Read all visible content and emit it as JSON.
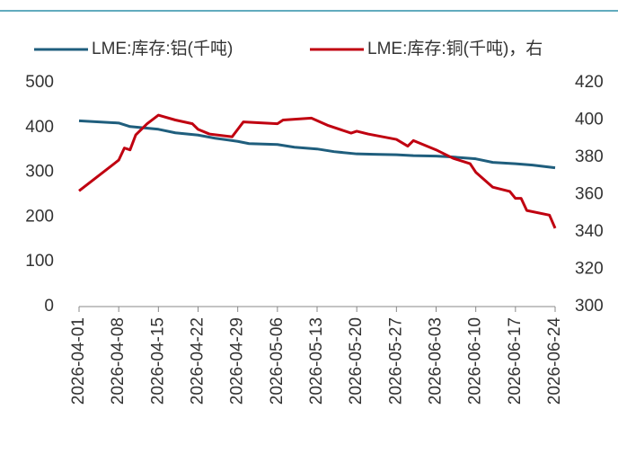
{
  "chart_data": {
    "type": "line",
    "xticks": [
      "2026-04-01",
      "2026-04-08",
      "2026-04-15",
      "2026-04-22",
      "2026-04-29",
      "2026-05-06",
      "2026-05-13",
      "2026-05-20",
      "2026-05-27",
      "2026-06-03",
      "2026-06-10",
      "2026-06-17",
      "2026-06-24"
    ],
    "xlim": [
      "2026-04-01",
      "2026-06-24"
    ],
    "ylim": [
      0,
      500
    ],
    "yticks": [
      0,
      100,
      200,
      300,
      400,
      500
    ],
    "y2lim": [
      300,
      420
    ],
    "y2ticks": [
      300,
      320,
      340,
      360,
      380,
      400,
      420
    ],
    "legend": "top",
    "series": [
      {
        "name": "LME:库存:铝(千吨)",
        "color": "#1f5e7d",
        "x": [
          "2026-04-01",
          "2026-04-08",
          "2026-04-10",
          "2026-04-15",
          "2026-04-18",
          "2026-04-22",
          "2026-04-25",
          "2026-04-29",
          "2026-05-01",
          "2026-05-06",
          "2026-05-09",
          "2026-05-13",
          "2026-05-16",
          "2026-05-20",
          "2026-05-23",
          "2026-05-27",
          "2026-05-30",
          "2026-06-03",
          "2026-06-06",
          "2026-06-10",
          "2026-06-13",
          "2026-06-17",
          "2026-06-20",
          "2026-06-24"
        ],
        "values": [
          415,
          410,
          402,
          396,
          388,
          383,
          376,
          369,
          364,
          362,
          356,
          352,
          346,
          341,
          340,
          339,
          337,
          336,
          334,
          330,
          322,
          319,
          316,
          310
        ]
      },
      {
        "name": "LME:库存:铜(千吨)，右",
        "color": "#c00010",
        "axis": "y2",
        "x": [
          "2026-04-01",
          "2026-04-08",
          "2026-04-09",
          "2026-04-10",
          "2026-04-11",
          "2026-04-13",
          "2026-04-15",
          "2026-04-18",
          "2026-04-21",
          "2026-04-22",
          "2026-04-24",
          "2026-04-28",
          "2026-04-29",
          "2026-04-30",
          "2026-05-06",
          "2026-05-07",
          "2026-05-12",
          "2026-05-15",
          "2026-05-19",
          "2026-05-20",
          "2026-05-22",
          "2026-05-27",
          "2026-05-29",
          "2026-05-30",
          "2026-06-03",
          "2026-06-06",
          "2026-06-09",
          "2026-06-10",
          "2026-06-13",
          "2026-06-16",
          "2026-06-17",
          "2026-06-18",
          "2026-06-19",
          "2026-06-23",
          "2026-06-24"
        ],
        "values": [
          362,
          378.5,
          385,
          384,
          392,
          398,
          402.6,
          400,
          398,
          395,
          392.5,
          391,
          395,
          399,
          398,
          400,
          401,
          397,
          393,
          394,
          392.5,
          389.6,
          386,
          389,
          384,
          379.5,
          376.6,
          372,
          364,
          361.7,
          358,
          358,
          351.5,
          349,
          342
        ]
      }
    ]
  }
}
